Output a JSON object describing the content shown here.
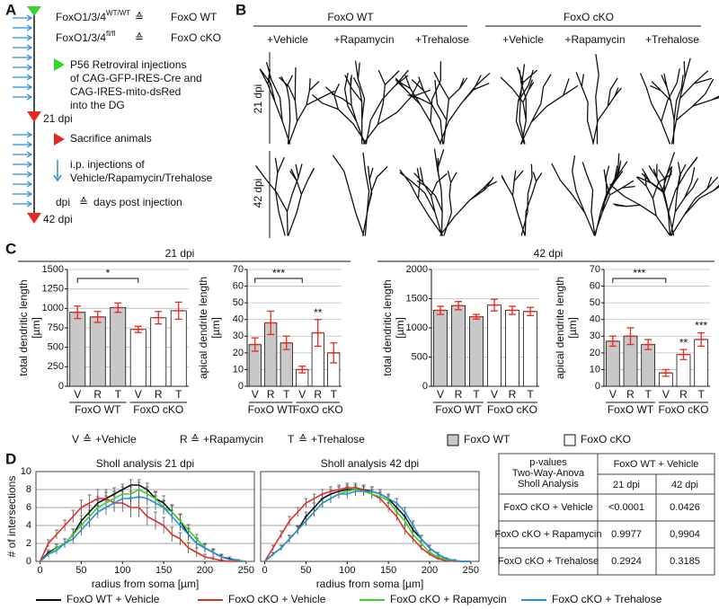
{
  "panel_labels": [
    "A",
    "B",
    "C",
    "D"
  ],
  "timeline": {
    "genotypes": [
      {
        "gene": "FoxO1/3/4",
        "allele": "WT/WT",
        "equiv": "≙",
        "label": "FoxO WT"
      },
      {
        "gene": "FoxO1/3/4",
        "allele": "fl/fl",
        "equiv": "≙",
        "label": "FoxO cKO"
      }
    ],
    "injection": [
      "P56 Retroviral injections",
      "of CAG-GFP-IRES-Cre and",
      "CAG-IRES-mito-dsRed",
      "into the DG"
    ],
    "mid": "21 dpi",
    "sacrifice": "Sacrifice animals",
    "ip": [
      "i.p. injections of",
      "Vehicle/Rapamycin/Trehalose"
    ],
    "abbr": {
      "term": "dpi",
      "equiv": "≙",
      "meaning": "days post injection"
    },
    "end": "42 dpi"
  },
  "morphology": {
    "genotypes": [
      "FoxO WT",
      "FoxO cKO"
    ],
    "treatments": [
      "+Vehicle",
      "+Rapamycin",
      "+Trehalose"
    ],
    "timepoints": [
      "21 dpi",
      "42 dpi"
    ]
  },
  "panel_c": {
    "headings": [
      "21 dpi",
      "42 dpi"
    ],
    "key": [
      {
        "letter": "V",
        "equiv": "≙",
        "meaning": "+Vehicle"
      },
      {
        "letter": "R",
        "equiv": "≙",
        "meaning": "+Rapamycin"
      },
      {
        "letter": "T",
        "equiv": "≙",
        "meaning": "+Trehalose"
      }
    ]
  },
  "chart_data": [
    {
      "type": "bar",
      "ylabel": [
        "total dendritic length",
        "[µm]"
      ],
      "ylim": [
        0,
        1500
      ],
      "yticks": [
        0,
        250,
        500,
        750,
        1000,
        1250,
        1500
      ],
      "grid": true,
      "error_color": "#e32b24",
      "annotation_color": "#29abe2",
      "groups": [
        {
          "name": "FoxO WT",
          "color": "#c8c8c8",
          "categories": [
            "V",
            "R",
            "T"
          ],
          "values": [
            950,
            890,
            1010
          ],
          "errors": [
            80,
            70,
            60
          ]
        },
        {
          "name": "FoxO cKO",
          "color": "#ffffff",
          "categories": [
            "V",
            "R",
            "T"
          ],
          "values": [
            730,
            880,
            970
          ],
          "errors": [
            40,
            80,
            110
          ]
        }
      ],
      "annotations": [
        {
          "text": "*",
          "bracket": true
        }
      ]
    },
    {
      "type": "bar",
      "ylabel": [
        "apical dendrite length",
        "[µm]"
      ],
      "ylim": [
        0,
        70
      ],
      "yticks": [
        0,
        10,
        20,
        30,
        40,
        50,
        60,
        70
      ],
      "grid": true,
      "error_color": "#e32b24",
      "annotation_color": "#29abe2",
      "groups": [
        {
          "name": "FoxO WT",
          "color": "#c8c8c8",
          "categories": [
            "V",
            "R",
            "T"
          ],
          "values": [
            25,
            38,
            26
          ],
          "errors": [
            4,
            7,
            4
          ]
        },
        {
          "name": "FoxO cKO",
          "color": "#ffffff",
          "categories": [
            "V",
            "R",
            "T"
          ],
          "values": [
            10,
            32,
            20
          ],
          "errors": [
            2,
            8,
            6
          ]
        }
      ],
      "annotations": [
        {
          "text": "***",
          "bracket": true
        },
        {
          "text": "**",
          "group": "FoxO cKO",
          "over": "R"
        }
      ]
    },
    {
      "type": "bar",
      "ylabel": [
        "total dendritic length",
        "[µm]"
      ],
      "ylim": [
        0,
        2000
      ],
      "yticks": [
        0,
        500,
        1000,
        1500,
        2000
      ],
      "grid": true,
      "error_color": "#e32b24",
      "annotation_color": "#29abe2",
      "groups": [
        {
          "name": "FoxO WT",
          "color": "#c8c8c8",
          "categories": [
            "V",
            "R",
            "T"
          ],
          "values": [
            1300,
            1380,
            1190
          ],
          "errors": [
            70,
            70,
            40
          ]
        },
        {
          "name": "FoxO cKO",
          "color": "#ffffff",
          "categories": [
            "V",
            "R",
            "T"
          ],
          "values": [
            1390,
            1300,
            1280
          ],
          "errors": [
            100,
            70,
            70
          ]
        }
      ],
      "annotations": []
    },
    {
      "type": "bar",
      "ylabel": [
        "apical dendrite length",
        "[µm]"
      ],
      "ylim": [
        0,
        70
      ],
      "yticks": [
        0,
        10,
        20,
        30,
        40,
        50,
        60,
        70
      ],
      "grid": true,
      "error_color": "#e32b24",
      "annotation_color": "#29abe2",
      "groups": [
        {
          "name": "FoxO WT",
          "color": "#c8c8c8",
          "categories": [
            "V",
            "R",
            "T"
          ],
          "values": [
            27,
            30,
            25
          ],
          "errors": [
            3,
            5,
            3
          ]
        },
        {
          "name": "FoxO cKO",
          "color": "#ffffff",
          "categories": [
            "V",
            "R",
            "T"
          ],
          "values": [
            8,
            19,
            28
          ],
          "errors": [
            2,
            3,
            4
          ]
        }
      ],
      "annotations": [
        {
          "text": "***",
          "bracket": true
        },
        {
          "text": "**",
          "group": "FoxO cKO",
          "over": "R"
        },
        {
          "text": "***",
          "group": "FoxO cKO",
          "over": "T"
        }
      ]
    },
    {
      "type": "line",
      "title": "Sholl analysis 21 dpi",
      "xlabel": "radius from soma [µm]",
      "ylabel": "# of intersections",
      "x": [
        0,
        10,
        20,
        30,
        40,
        50,
        60,
        70,
        80,
        90,
        100,
        110,
        120,
        130,
        140,
        150,
        160,
        170,
        180,
        190,
        200,
        210,
        220,
        230,
        240,
        250
      ],
      "xlim": [
        -5,
        260
      ],
      "xticks": [
        0,
        50,
        100,
        150,
        200,
        250
      ],
      "ylim": [
        0,
        10
      ],
      "yticks": [
        0,
        2,
        4,
        6,
        8,
        10
      ],
      "grid": true,
      "series": [
        {
          "name": "FoxO WT + Vehicle",
          "color": "#111111",
          "values": [
            0,
            1,
            1.5,
            2,
            3,
            4.5,
            5.5,
            6.5,
            7,
            7.5,
            8,
            8.5,
            8.5,
            8,
            7,
            6.5,
            5.5,
            4.5,
            3,
            2,
            1.5,
            1,
            0.5,
            0.3,
            0.1,
            0
          ],
          "errors": [
            0,
            0.3,
            0.4,
            0.5,
            0.6,
            0.6,
            0.7,
            0.7,
            0.7,
            0.7,
            0.6,
            0.6,
            0.6,
            0.7,
            0.7,
            0.8,
            0.8,
            0.8,
            0.7,
            0.6,
            0.5,
            0.4,
            0.3,
            0.2,
            0.1,
            0
          ]
        },
        {
          "name": "FoxO cKO + Vehicle",
          "color": "#e32b24",
          "values": [
            0,
            2,
            3,
            4,
            5,
            6,
            6.5,
            7,
            7,
            6.5,
            6.5,
            6,
            6,
            5,
            4.5,
            4,
            3,
            2.5,
            1.5,
            1,
            0.5,
            0.3,
            0.1,
            0,
            0,
            0
          ],
          "errors": [
            0,
            0.4,
            0.5,
            0.6,
            0.7,
            0.8,
            0.9,
            1,
            1,
            1,
            1,
            1.1,
            1.1,
            1,
            1,
            0.9,
            0.8,
            0.7,
            0.6,
            0.5,
            0.3,
            0.2,
            0.1,
            0,
            0,
            0
          ]
        },
        {
          "name": "FoxO cKO + Rapamycin",
          "color": "#39d42c",
          "values": [
            0,
            0.8,
            1.5,
            2,
            3,
            4,
            5,
            6,
            6.5,
            7,
            7.5,
            7.5,
            8,
            7.5,
            7,
            6,
            5.5,
            4.5,
            3.5,
            2.5,
            1.5,
            1,
            0.5,
            0.2,
            0.1,
            0
          ],
          "errors": [
            0,
            0.3,
            0.4,
            0.5,
            0.6,
            0.7,
            0.7,
            0.8,
            0.8,
            0.8,
            0.8,
            0.8,
            0.8,
            0.8,
            0.8,
            0.8,
            0.7,
            0.7,
            0.6,
            0.5,
            0.4,
            0.3,
            0.2,
            0.1,
            0.1,
            0
          ]
        },
        {
          "name": "FoxO cKO + Trehalose",
          "color": "#2b8fe0",
          "values": [
            0,
            0.8,
            1.2,
            2,
            2.5,
            3.5,
            4.5,
            5.5,
            6,
            6.5,
            7,
            7,
            7.2,
            7,
            6.5,
            6,
            5,
            4,
            3,
            2,
            1.5,
            1,
            0.5,
            0.2,
            0.1,
            0
          ],
          "errors": [
            0,
            0.3,
            0.4,
            0.5,
            0.5,
            0.6,
            0.7,
            0.7,
            0.8,
            0.8,
            0.8,
            0.8,
            0.8,
            0.8,
            0.8,
            0.7,
            0.7,
            0.6,
            0.6,
            0.5,
            0.4,
            0.3,
            0.2,
            0.1,
            0.1,
            0
          ]
        }
      ]
    },
    {
      "type": "line",
      "title": "Sholl analysis 42 dpi",
      "xlabel": "radius from soma [µm]",
      "x": [
        0,
        10,
        20,
        30,
        40,
        50,
        60,
        70,
        80,
        90,
        100,
        110,
        120,
        130,
        140,
        150,
        160,
        170,
        180,
        190,
        200,
        210,
        220,
        230,
        240,
        250
      ],
      "xlim": [
        -5,
        260
      ],
      "xticks": [
        0,
        50,
        100,
        150,
        200,
        250
      ],
      "ylim": [
        0,
        10
      ],
      "yticks": [
        0,
        2,
        4,
        6,
        8,
        10
      ],
      "grid": true,
      "series": [
        {
          "name": "FoxO WT + Vehicle",
          "color": "#111111",
          "values": [
            0,
            0.8,
            1.5,
            2.5,
            3.5,
            5,
            6,
            7,
            7.5,
            7.8,
            8,
            8,
            8,
            7.8,
            7.5,
            7,
            6,
            5,
            3.5,
            2.5,
            1.5,
            0.8,
            0.3,
            0.1,
            0,
            0
          ],
          "errors": [
            0,
            0.2,
            0.3,
            0.4,
            0.5,
            0.5,
            0.5,
            0.5,
            0.5,
            0.5,
            0.5,
            0.5,
            0.5,
            0.5,
            0.5,
            0.5,
            0.5,
            0.5,
            0.5,
            0.4,
            0.3,
            0.2,
            0.1,
            0.1,
            0,
            0
          ]
        },
        {
          "name": "FoxO cKO + Vehicle",
          "color": "#e32b24",
          "values": [
            0,
            1.5,
            3,
            4.5,
            5.5,
            6.5,
            7,
            7.5,
            7.8,
            8,
            8.2,
            8.2,
            8,
            7.5,
            7,
            6,
            5,
            3.5,
            2.5,
            1.5,
            0.8,
            0.3,
            0.1,
            0,
            0,
            0
          ],
          "errors": [
            0,
            0.3,
            0.4,
            0.5,
            0.5,
            0.5,
            0.5,
            0.5,
            0.5,
            0.5,
            0.5,
            0.5,
            0.5,
            0.5,
            0.5,
            0.5,
            0.5,
            0.5,
            0.4,
            0.3,
            0.2,
            0.1,
            0.1,
            0,
            0,
            0
          ]
        },
        {
          "name": "FoxO cKO + Rapamycin",
          "color": "#39d42c",
          "values": [
            0,
            0.8,
            1.5,
            2.5,
            3.5,
            4.5,
            5.5,
            6.5,
            7,
            7.5,
            7.8,
            8,
            7.8,
            7.5,
            7.2,
            6.8,
            5.5,
            4.5,
            3,
            2,
            1,
            0.5,
            0.2,
            0.1,
            0,
            0
          ],
          "errors": [
            0,
            0.2,
            0.3,
            0.4,
            0.4,
            0.5,
            0.5,
            0.5,
            0.5,
            0.5,
            0.5,
            0.5,
            0.5,
            0.5,
            0.5,
            0.5,
            0.5,
            0.5,
            0.4,
            0.3,
            0.2,
            0.1,
            0.1,
            0,
            0,
            0
          ]
        },
        {
          "name": "FoxO cKO + Trehalose",
          "color": "#2b8fe0",
          "values": [
            0,
            0.8,
            1.5,
            2.5,
            3.5,
            4.5,
            5.5,
            6.5,
            7,
            7.5,
            7.5,
            7.8,
            7.8,
            7.8,
            7.5,
            7,
            6.5,
            5.5,
            4,
            2.5,
            1.5,
            0.8,
            0.3,
            0.1,
            0,
            0
          ],
          "errors": [
            0,
            0.2,
            0.3,
            0.4,
            0.4,
            0.5,
            0.5,
            0.5,
            0.5,
            0.5,
            0.5,
            0.5,
            0.5,
            0.5,
            0.5,
            0.5,
            0.5,
            0.5,
            0.5,
            0.4,
            0.3,
            0.2,
            0.1,
            0.1,
            0,
            0
          ]
        }
      ]
    }
  ],
  "table": {
    "corner": [
      "p-values",
      "Two-Way-Anova",
      "Sholl Analysis"
    ],
    "reference": "FoxO WT + Vehicle",
    "columns": [
      "21 dpi",
      "42 dpi"
    ],
    "rows": [
      [
        "FoxO cKO + Vehicle",
        "<0.0001",
        "0.0426"
      ],
      [
        "FoxO cKO + Rapamycin",
        "0.9977",
        "0,9904"
      ],
      [
        "FoxO cKO + Trehalose",
        "0.2924",
        "0.3185"
      ]
    ]
  }
}
